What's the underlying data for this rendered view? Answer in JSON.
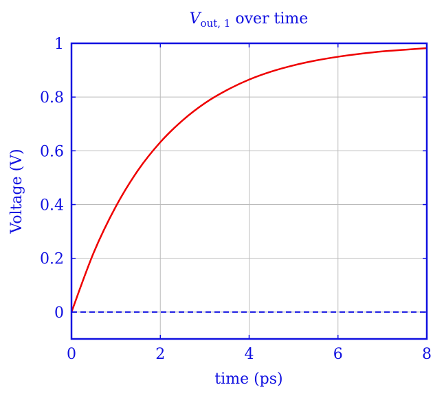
{
  "chart_data": {
    "type": "line",
    "title": {
      "var": "V",
      "sub": "out, 1",
      "rest": " over time"
    },
    "xlabel": "time (ps)",
    "ylabel": "Voltage (V)",
    "xlim": [
      0,
      8
    ],
    "ylim": [
      -0.1,
      1
    ],
    "xticks": [
      0,
      2,
      4,
      6,
      8
    ],
    "yticks": [
      0,
      0.2,
      0.4,
      0.6,
      0.8,
      1
    ],
    "grid": true,
    "colors": {
      "axis": "#1010e0",
      "series": "#ee0000",
      "reference": "#1010e0",
      "grid": "#bbbbbb"
    },
    "series": [
      {
        "style": "solid",
        "x": [
          0,
          0.5,
          1,
          1.5,
          2,
          2.5,
          3,
          3.5,
          4,
          4.5,
          5,
          5.5,
          6,
          6.5,
          7,
          7.5,
          8
        ],
        "y": [
          0,
          0.221,
          0.393,
          0.528,
          0.632,
          0.713,
          0.777,
          0.826,
          0.865,
          0.895,
          0.918,
          0.936,
          0.95,
          0.961,
          0.97,
          0.976,
          0.982
        ]
      },
      {
        "style": "dashed",
        "x": [
          0,
          8
        ],
        "y": [
          0,
          0
        ]
      }
    ]
  }
}
